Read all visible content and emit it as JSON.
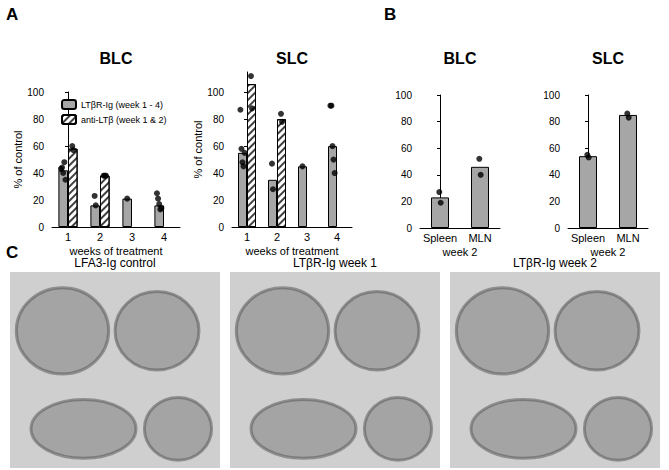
{
  "panel_labels": [
    "A",
    "B",
    "C"
  ],
  "chart_data": [
    {
      "type": "bar",
      "title": "BLC",
      "x_label": "weeks of treatment",
      "y_label": "% of control",
      "categories": [
        "1",
        "2",
        "3",
        "4"
      ],
      "series": [
        {
          "name": "LTβR-Ig (week 1 - 4)",
          "color": "#a6a6a6",
          "values": [
            42,
            16,
            21,
            16
          ],
          "points": [
            [
              43,
              44,
              40,
              48,
              35
            ],
            [
              23,
              16
            ],
            [
              21
            ],
            [
              25,
              21,
              17,
              13,
              14
            ]
          ]
        },
        {
          "name": "anti-LTβ (week 1 & 2)",
          "color": "#ffffff",
          "values": [
            58,
            38,
            null,
            null
          ],
          "points": [
            [
              60,
              57
            ],
            [
              38,
              38,
              38
            ],
            [],
            []
          ]
        }
      ],
      "ylim": [
        0,
        100
      ],
      "yticks": [
        0,
        20,
        40,
        60,
        80,
        100
      ],
      "legend": "upper left",
      "grid": false
    },
    {
      "type": "bar",
      "title": "SLC",
      "x_label": "weeks of treatment",
      "y_label": "% of control",
      "categories": [
        "1",
        "2",
        "3",
        "4"
      ],
      "series": [
        {
          "name": "LTβR-Ig (week 1 - 4)",
          "color": "#a6a6a6",
          "values": [
            55,
            35,
            45,
            60
          ],
          "points": [
            [
              87,
              58,
              48,
              45,
              55
            ],
            [
              47,
              28
            ],
            [
              45
            ],
            [
              90,
              90,
              60,
              50,
              40
            ]
          ]
        },
        {
          "name": "anti-LTβ (week 1 & 2)",
          "color": "#ffffff",
          "values": [
            106,
            80,
            null,
            null
          ],
          "points": [
            [
              112,
              88
            ],
            [
              84,
              78
            ],
            [],
            []
          ]
        }
      ],
      "ylim": [
        0,
        115
      ],
      "yticks": [
        0,
        20,
        40,
        60,
        80,
        100
      ],
      "grid": false
    },
    {
      "type": "bar",
      "title": "BLC",
      "x_label": "week 2",
      "categories": [
        "Spleen",
        "MLN"
      ],
      "values": [
        23,
        46
      ],
      "color": "#a6a6a6",
      "points": [
        [
          27,
          19
        ],
        [
          52,
          40
        ]
      ],
      "ylim": [
        0,
        100
      ],
      "yticks": [
        0,
        20,
        40,
        60,
        80,
        100
      ],
      "grid": false
    },
    {
      "type": "bar",
      "title": "SLC",
      "x_label": "week 2",
      "categories": [
        "Spleen",
        "MLN"
      ],
      "values": [
        54,
        85
      ],
      "color": "#a6a6a6",
      "points": [
        [
          55,
          53
        ],
        [
          86,
          83
        ]
      ],
      "ylim": [
        0,
        100
      ],
      "yticks": [
        0,
        20,
        40,
        60,
        80,
        100
      ],
      "grid": false
    }
  ],
  "images": [
    {
      "label": "LFA3-Ig control"
    },
    {
      "label": "LTβR-Ig week 1"
    },
    {
      "label": "LTβR-Ig week 2"
    }
  ]
}
